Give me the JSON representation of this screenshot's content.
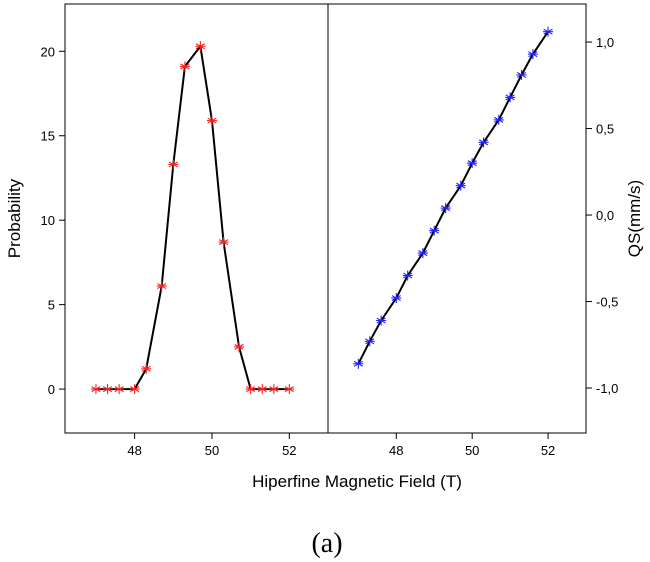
{
  "figure": {
    "xlabel": "Hiperfine Magnetic Field (T)",
    "panel_label": "(a)"
  },
  "chart_data": [
    {
      "type": "line",
      "panel": "left",
      "xlabel": "",
      "ylabel": "Probability",
      "xlim": [
        46.2,
        53.0
      ],
      "ylim": [
        -2.6,
        22.8
      ],
      "xticks": [
        48,
        50,
        52
      ],
      "xtick_labels": [
        "48",
        "50",
        "52"
      ],
      "yticks": [
        0,
        5,
        10,
        15,
        20
      ],
      "ytick_labels": [
        "0",
        "5",
        "10",
        "15",
        "20"
      ],
      "marker": "asterisk",
      "marker_color": "#ff2020",
      "line_color": "#000000",
      "x": [
        47.0,
        47.3,
        47.6,
        48.0,
        48.3,
        48.7,
        49.0,
        49.3,
        49.7,
        50.0,
        50.3,
        50.7,
        51.0,
        51.3,
        51.6,
        52.0
      ],
      "y": [
        0.0,
        0.0,
        0.0,
        0.0,
        1.2,
        6.1,
        13.3,
        19.1,
        20.3,
        15.9,
        8.7,
        2.5,
        0.0,
        0.0,
        0.0,
        0.0
      ]
    },
    {
      "type": "line",
      "panel": "right",
      "xlabel": "",
      "ylabel": "QS(mm/s)",
      "xlim": [
        46.2,
        53.0
      ],
      "ylim": [
        -1.26,
        1.22
      ],
      "xticks": [
        48,
        50,
        52
      ],
      "xtick_labels": [
        "48",
        "50",
        "52"
      ],
      "yticks": [
        -1.0,
        -0.5,
        0.0,
        0.5,
        1.0
      ],
      "ytick_labels": [
        "-1,0",
        "-0,5",
        "0,0",
        "0,5",
        "1,0"
      ],
      "marker": "asterisk",
      "marker_color": "#2020ff",
      "line_color": "#000000",
      "x": [
        47.0,
        47.3,
        47.6,
        48.0,
        48.3,
        48.7,
        49.0,
        49.3,
        49.7,
        50.0,
        50.3,
        50.7,
        51.0,
        51.3,
        51.6,
        52.0
      ],
      "y": [
        -0.86,
        -0.73,
        -0.61,
        -0.48,
        -0.35,
        -0.22,
        -0.09,
        0.04,
        0.17,
        0.3,
        0.42,
        0.55,
        0.68,
        0.81,
        0.93,
        1.06
      ]
    }
  ]
}
